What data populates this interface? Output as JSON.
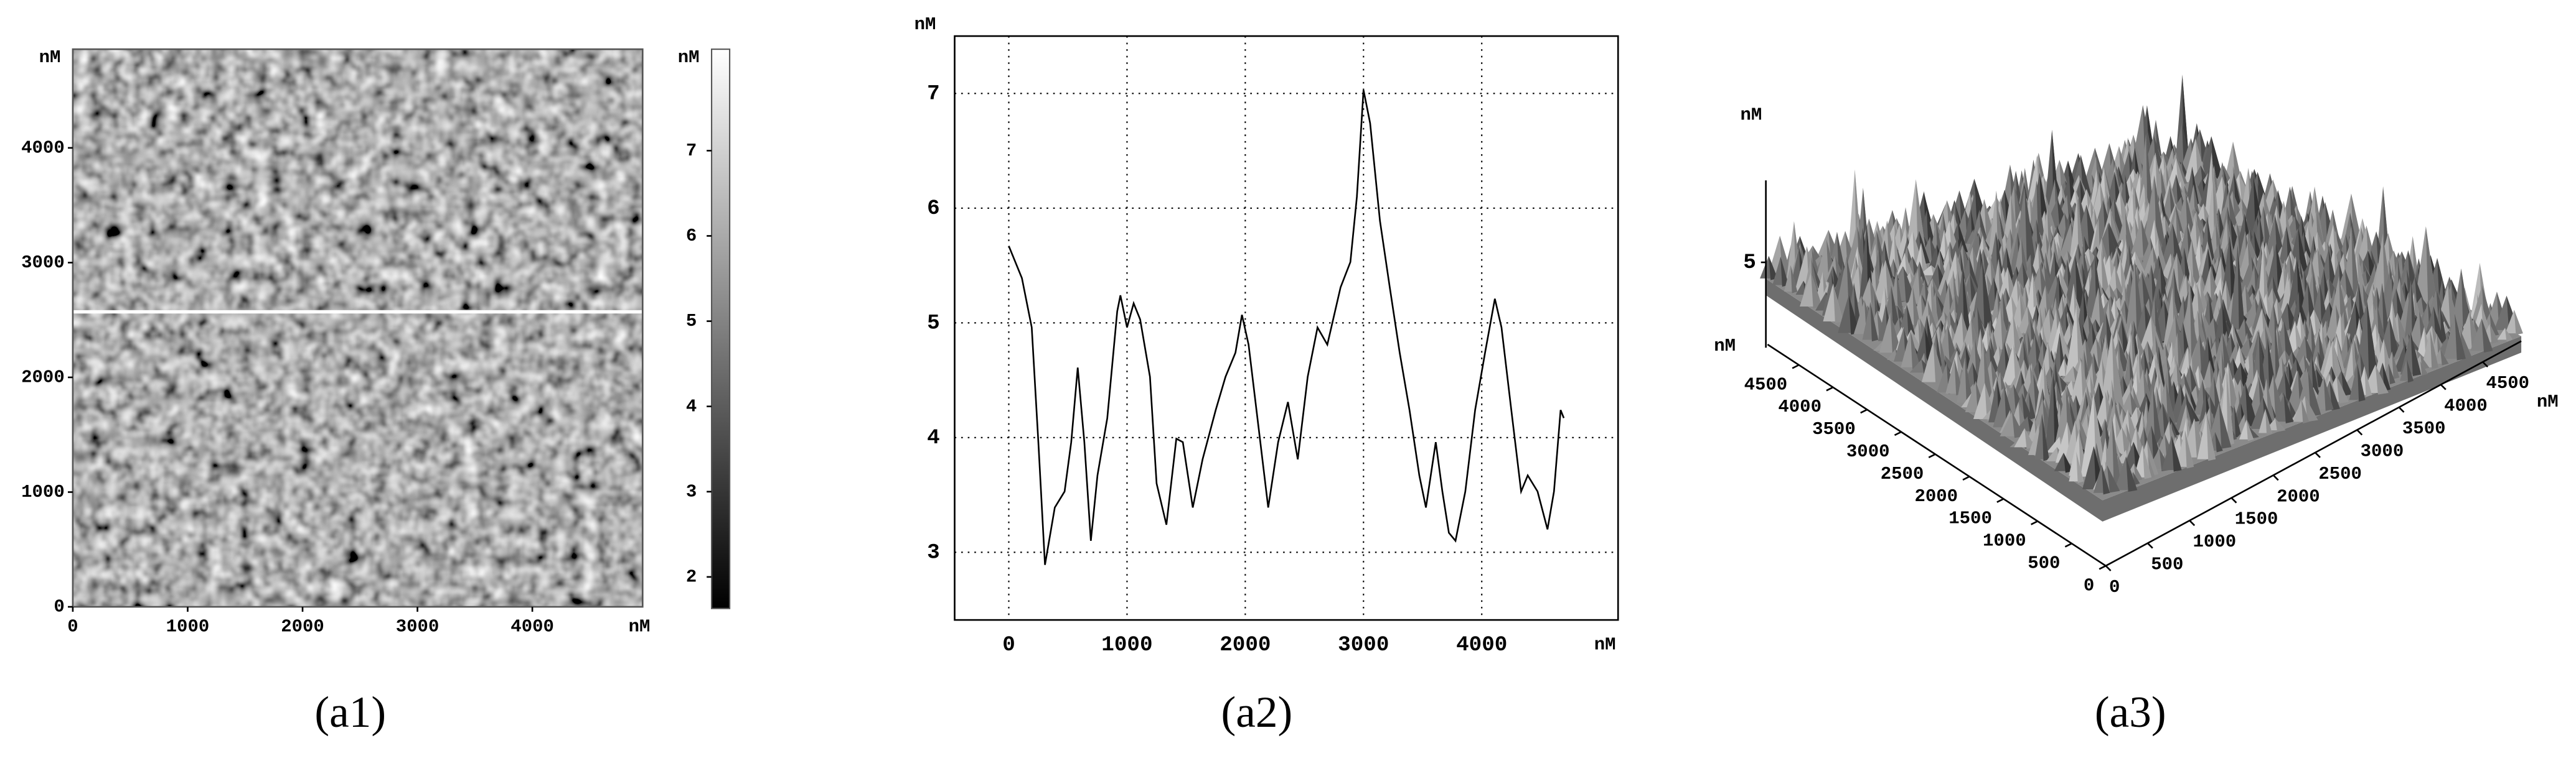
{
  "chart_data": [
    {
      "type": "heatmap",
      "caption": "(a1)",
      "x_label": "nM",
      "y_label": "nM",
      "xlim": [
        0,
        4960
      ],
      "ylim": [
        0,
        4860
      ],
      "xticks": [
        0,
        1000,
        2000,
        3000,
        4000
      ],
      "yticks": [
        0,
        1000,
        2000,
        3000,
        4000
      ],
      "profile_line_y": 2571,
      "profile_line_color": "#ffffff",
      "colorbar": {
        "label": "nM",
        "lim": [
          1.63,
          8.19
        ],
        "ticks": [
          2,
          3,
          4,
          5,
          6,
          7
        ],
        "colors": [
          "#000000",
          "#ffffff"
        ]
      }
    },
    {
      "type": "line",
      "caption": "(a2)",
      "x_label": "nM",
      "y_label": "nM",
      "color": "#000000",
      "grid": true,
      "xlim": [
        -458,
        5153
      ],
      "ylim": [
        2.41,
        7.5
      ],
      "xticks": [
        0,
        1000,
        2000,
        3000,
        4000
      ],
      "yticks": [
        3,
        4,
        5,
        6,
        7
      ],
      "x": [
        0,
        111,
        194,
        250,
        306,
        389,
        472,
        528,
        583,
        639,
        694,
        750,
        833,
        917,
        944,
        1000,
        1056,
        1111,
        1194,
        1250,
        1333,
        1417,
        1472,
        1556,
        1639,
        1750,
        1833,
        1917,
        1972,
        2028,
        2111,
        2194,
        2278,
        2361,
        2444,
        2528,
        2611,
        2694,
        2806,
        2889,
        2944,
        3000,
        3056,
        3139,
        3222,
        3306,
        3389,
        3472,
        3528,
        3611,
        3667,
        3722,
        3778,
        3861,
        3944,
        4028,
        4111,
        4167,
        4250,
        4333,
        4389,
        4472,
        4556,
        4611,
        4667,
        4694
      ],
      "values": [
        5.67,
        5.39,
        4.96,
        3.96,
        2.89,
        3.39,
        3.53,
        3.96,
        4.61,
        3.96,
        3.1,
        3.67,
        4.17,
        5.1,
        5.24,
        4.96,
        5.17,
        5.03,
        4.53,
        3.6,
        3.24,
        3.99,
        3.96,
        3.39,
        3.81,
        4.24,
        4.53,
        4.74,
        5.07,
        4.81,
        4.1,
        3.39,
        3.96,
        4.31,
        3.81,
        4.53,
        4.96,
        4.81,
        5.31,
        5.53,
        6.1,
        7.03,
        6.74,
        5.89,
        5.31,
        4.74,
        4.24,
        3.67,
        3.39,
        3.96,
        3.53,
        3.17,
        3.1,
        3.53,
        4.24,
        4.74,
        5.21,
        4.96,
        4.24,
        3.53,
        3.67,
        3.53,
        3.2,
        3.53,
        4.24,
        4.17
      ]
    },
    {
      "type": "surface3d",
      "caption": "(a3)",
      "x_label": "nM",
      "y_label": "nM",
      "z_label": "nM",
      "xlim": [
        0,
        4960
      ],
      "ylim": [
        0,
        4960
      ],
      "zlim": [
        2.5,
        7.4
      ],
      "xticks": [
        0,
        500,
        1000,
        1500,
        2000,
        2500,
        3000,
        3500,
        4000,
        4500
      ],
      "yticks": [
        0,
        500,
        1000,
        1500,
        2000,
        2500,
        3000,
        3500,
        4000,
        4500
      ],
      "zticks": [
        5
      ]
    }
  ]
}
